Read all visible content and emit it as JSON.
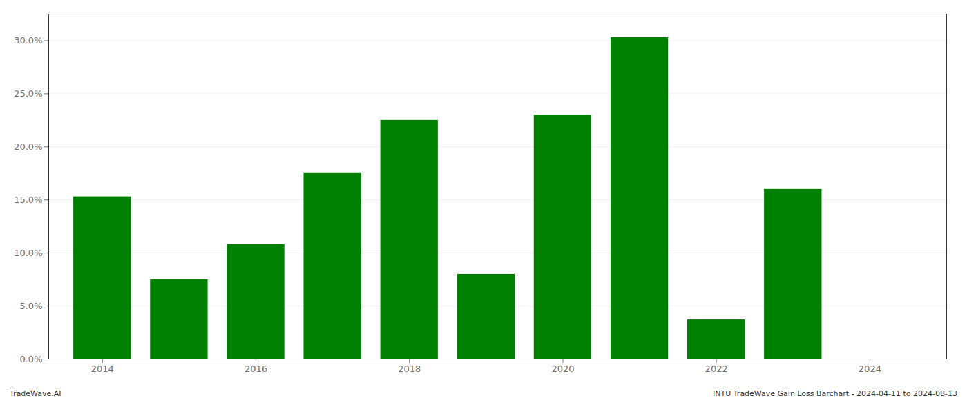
{
  "chart_data": {
    "type": "bar",
    "title": "INTU TradeWave Gain Loss Barchart - 2024-04-11 to 2024-08-13",
    "annotations": [
      "TradeWave.AI"
    ],
    "x": [
      2014,
      2015,
      2016,
      2017,
      2018,
      2019,
      2020,
      2021,
      2022,
      2023,
      2024
    ],
    "values": [
      0.153,
      0.075,
      0.108,
      0.175,
      0.225,
      0.08,
      0.23,
      0.303,
      0.037,
      0.16,
      0.0
    ],
    "color": "#008000",
    "xlim": [
      2013.3,
      2025.0
    ],
    "xticks": [
      2014,
      2016,
      2018,
      2020,
      2022,
      2024
    ],
    "ylim": [
      0,
      0.325
    ],
    "yticks": [
      {
        "value": 0.0,
        "label": "0.0%"
      },
      {
        "value": 0.05,
        "label": "5.0%"
      },
      {
        "value": 0.1,
        "label": "10.0%"
      },
      {
        "value": 0.15,
        "label": "15.0%"
      },
      {
        "value": 0.2,
        "label": "20.0%"
      },
      {
        "value": 0.25,
        "label": "25.0%"
      },
      {
        "value": 0.3,
        "label": "30.0%"
      }
    ],
    "grid": true
  }
}
